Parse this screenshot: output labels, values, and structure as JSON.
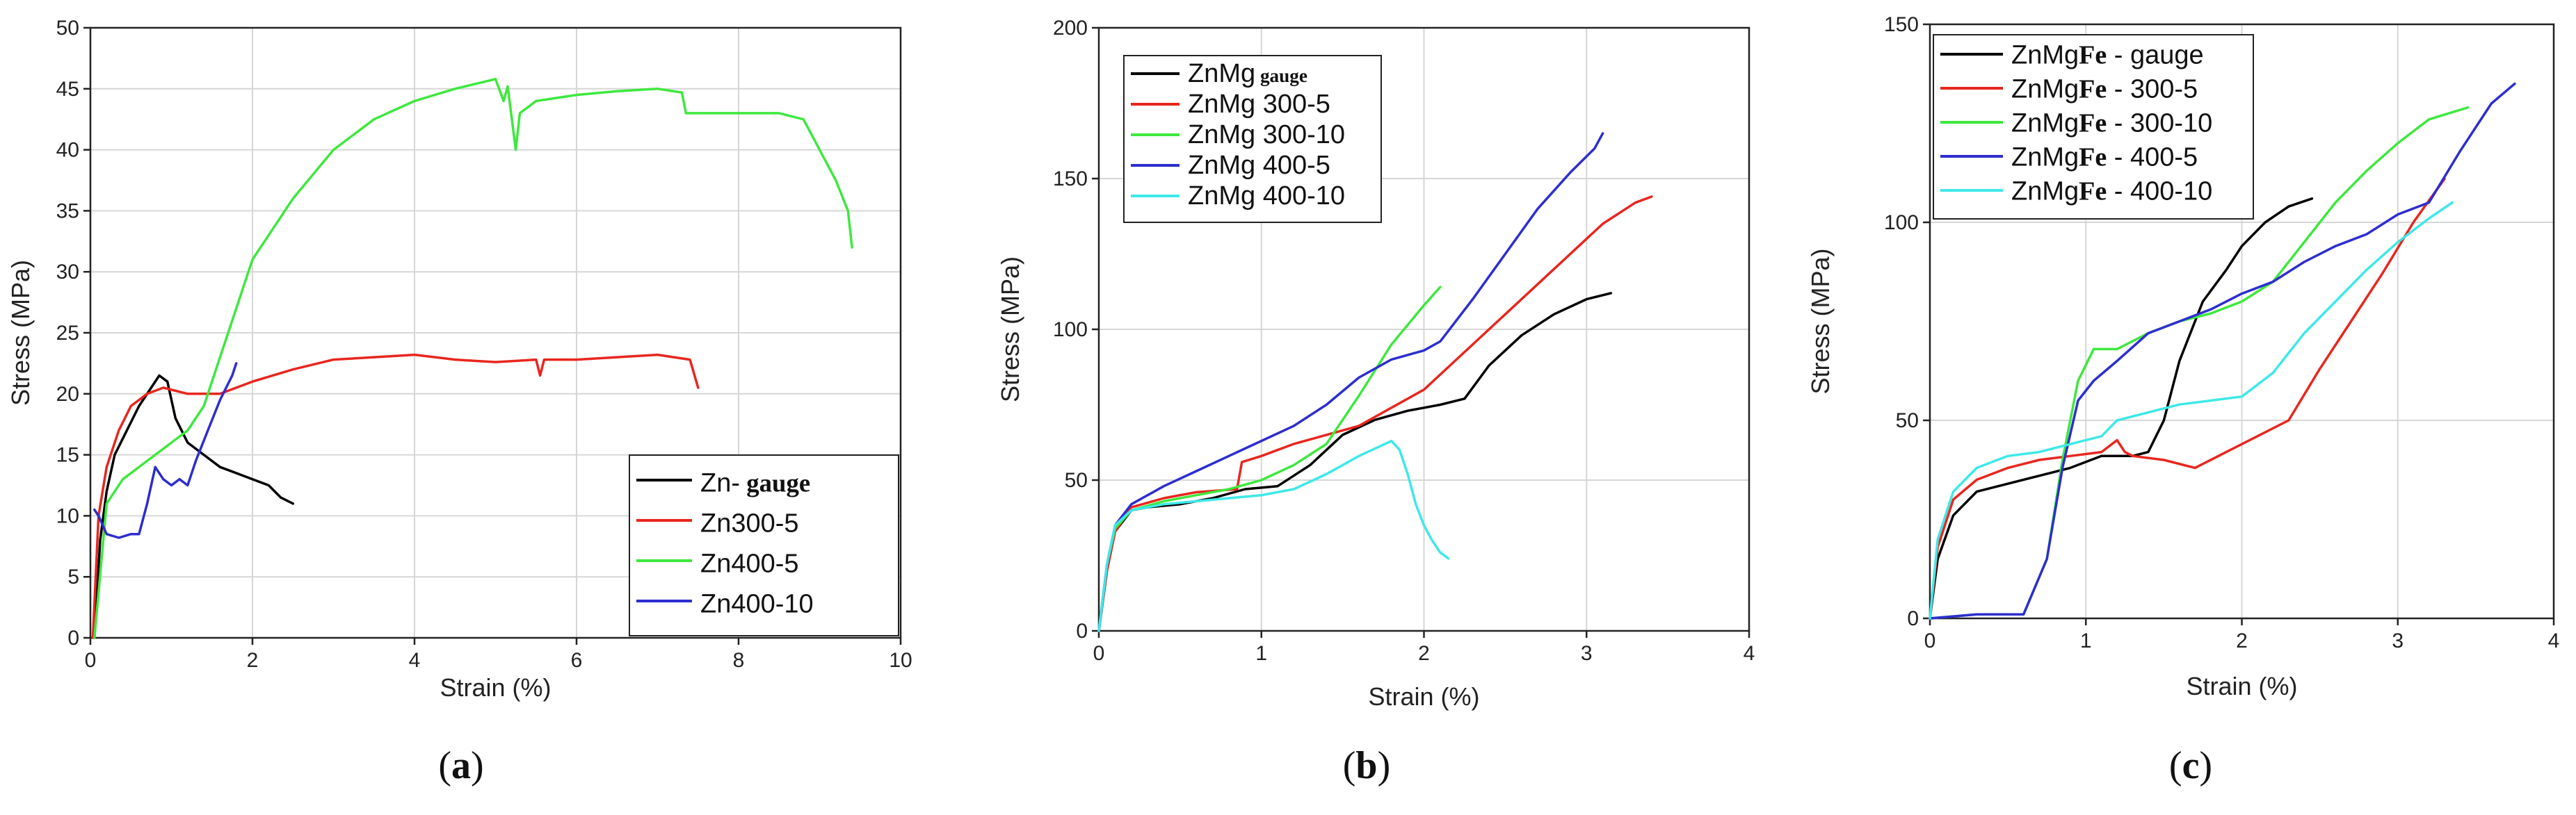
{
  "chart_data": [
    {
      "type": "line",
      "panel_label": "(a)",
      "panel_letter": "a",
      "xlabel": "Strain (%)",
      "ylabel": "Stress (MPa)",
      "xlim": [
        0,
        10
      ],
      "ylim": [
        0,
        50
      ],
      "xticks": [
        0,
        2,
        4,
        6,
        8,
        10
      ],
      "yticks": [
        0,
        5,
        10,
        15,
        20,
        25,
        30,
        35,
        40,
        45,
        50
      ],
      "grid": true,
      "legend_position": "bottom-right",
      "series": [
        {
          "name": "Zn- gauge",
          "prefix": "Zn-",
          "suffix": "gauge",
          "color": "#000000",
          "x": [
            0.05,
            0.12,
            0.2,
            0.3,
            0.45,
            0.6,
            0.75,
            0.85,
            0.95,
            1.05,
            1.2,
            1.4,
            1.6,
            1.8,
            2.0,
            2.2,
            2.35,
            2.5
          ],
          "y": [
            0,
            8,
            12,
            15,
            17,
            19,
            20.5,
            21.5,
            21,
            18,
            16,
            15,
            14,
            13.5,
            13,
            12.5,
            11.5,
            11
          ]
        },
        {
          "name": "Zn300-5",
          "prefix": "Zn300-5",
          "suffix": "",
          "color": "#e8261e",
          "x": [
            0.03,
            0.1,
            0.2,
            0.35,
            0.5,
            0.7,
            0.9,
            1.2,
            1.6,
            2.0,
            2.5,
            3.0,
            3.5,
            4.0,
            4.5,
            5.0,
            5.5,
            5.55,
            5.6,
            6.0,
            6.5,
            7.0,
            7.2,
            7.4,
            7.5
          ],
          "y": [
            0,
            10,
            14,
            17,
            19,
            20,
            20.5,
            20,
            20,
            21,
            22,
            22.8,
            23,
            23.2,
            22.8,
            22.6,
            22.8,
            21.5,
            22.8,
            22.8,
            23,
            23.2,
            23,
            22.8,
            20.5
          ]
        },
        {
          "name": "Zn400-5",
          "prefix": "Zn400-5",
          "suffix": "",
          "color": "#3ee83e",
          "x": [
            0.05,
            0.2,
            0.4,
            0.8,
            1.2,
            1.4,
            1.6,
            1.8,
            2.0,
            2.5,
            3.0,
            3.5,
            4.0,
            4.5,
            5.0,
            5.1,
            5.15,
            5.25,
            5.3,
            5.5,
            6.0,
            6.5,
            7.0,
            7.3,
            7.35,
            7.6,
            8.0,
            8.5,
            8.8,
            9.0,
            9.2,
            9.35,
            9.4
          ],
          "y": [
            0,
            11,
            13,
            15,
            17,
            19,
            23,
            27,
            31,
            36,
            40,
            42.5,
            44,
            45,
            45.8,
            44,
            45.2,
            40,
            43,
            44,
            44.5,
            44.8,
            45,
            44.7,
            43,
            43,
            43,
            43,
            42.5,
            40,
            37.5,
            35,
            32
          ]
        },
        {
          "name": "Zn400-10",
          "prefix": "Zn400-10",
          "suffix": "",
          "color": "#2d2dd0",
          "x": [
            0.05,
            0.1,
            0.2,
            0.35,
            0.5,
            0.6,
            0.7,
            0.8,
            0.9,
            1.0,
            1.1,
            1.2,
            1.3,
            1.45,
            1.6,
            1.75,
            1.8
          ],
          "y": [
            10.5,
            10,
            8.5,
            8.2,
            8.5,
            8.5,
            11,
            14,
            13,
            12.5,
            13,
            12.5,
            14.5,
            17,
            19.5,
            21.5,
            22.5
          ]
        }
      ]
    },
    {
      "type": "line",
      "panel_label": "(b)",
      "panel_letter": "b",
      "xlabel": "Strain (%)",
      "ylabel": "Stress (MPa)",
      "xlim": [
        0,
        4
      ],
      "ylim": [
        0,
        200
      ],
      "xticks": [
        0,
        1,
        2,
        3,
        4
      ],
      "yticks": [
        0,
        50,
        100,
        150,
        200
      ],
      "grid": true,
      "legend_position": "top-left",
      "series": [
        {
          "name": "ZnMg gauge",
          "prefix": "ZnMg",
          "suffix": "gauge",
          "color": "#000000",
          "x": [
            0,
            0.05,
            0.1,
            0.2,
            0.3,
            0.5,
            0.7,
            0.9,
            1.1,
            1.3,
            1.5,
            1.7,
            1.9,
            2.1,
            2.25,
            2.4,
            2.6,
            2.8,
            3.0,
            3.15
          ],
          "y": [
            0,
            20,
            33,
            40,
            41,
            42,
            44,
            47,
            48,
            55,
            65,
            70,
            73,
            75,
            77,
            88,
            98,
            105,
            110,
            112
          ]
        },
        {
          "name": "ZnMg 300-5",
          "prefix": "ZnMg",
          "suffix": "300-5",
          "color": "#e8261e",
          "x": [
            0,
            0.05,
            0.1,
            0.2,
            0.4,
            0.6,
            0.85,
            0.88,
            1.0,
            1.2,
            1.4,
            1.6,
            1.8,
            2.0,
            2.2,
            2.5,
            2.8,
            3.1,
            3.3,
            3.4
          ],
          "y": [
            0,
            20,
            33,
            41,
            44,
            46,
            47,
            56,
            58,
            62,
            65,
            68,
            74,
            80,
            90,
            105,
            120,
            135,
            142,
            144
          ]
        },
        {
          "name": "ZnMg 300-10",
          "prefix": "ZnMg",
          "suffix": "300-10",
          "color": "#3ee83e",
          "x": [
            0,
            0.05,
            0.1,
            0.2,
            0.4,
            0.6,
            0.8,
            1.0,
            1.2,
            1.4,
            1.6,
            1.8,
            2.0,
            2.1
          ],
          "y": [
            0,
            22,
            34,
            40,
            43,
            45,
            47,
            50,
            55,
            62,
            78,
            95,
            108,
            114
          ]
        },
        {
          "name": "ZnMg 400-5",
          "prefix": "ZnMg",
          "suffix": "400-5",
          "color": "#2d2dd0",
          "x": [
            0,
            0.05,
            0.1,
            0.2,
            0.4,
            0.6,
            0.8,
            1.0,
            1.2,
            1.4,
            1.6,
            1.8,
            2.0,
            2.1,
            2.3,
            2.5,
            2.7,
            2.9,
            3.05,
            3.1
          ],
          "y": [
            0,
            22,
            35,
            42,
            48,
            53,
            58,
            63,
            68,
            75,
            84,
            90,
            93,
            96,
            110,
            125,
            140,
            152,
            160,
            165
          ]
        },
        {
          "name": "ZnMg 400-10",
          "prefix": "ZnMg",
          "suffix": "400-10",
          "color": "#3ee8e8",
          "x": [
            0,
            0.05,
            0.1,
            0.2,
            0.4,
            0.6,
            0.8,
            1.0,
            1.2,
            1.4,
            1.6,
            1.8,
            1.85,
            1.9,
            1.95,
            2.0,
            2.05,
            2.1,
            2.15
          ],
          "y": [
            0,
            22,
            35,
            40,
            42,
            43,
            44,
            45,
            47,
            52,
            58,
            63,
            60,
            52,
            42,
            35,
            30,
            26,
            24
          ]
        }
      ]
    },
    {
      "type": "line",
      "panel_label": "(c)",
      "panel_letter": "c",
      "xlabel": "Strain (%)",
      "ylabel": "Stress (MPa)",
      "xlim": [
        0,
        4
      ],
      "ylim": [
        0,
        150
      ],
      "xticks": [
        0,
        1,
        2,
        3,
        4
      ],
      "yticks": [
        0,
        50,
        100,
        150
      ],
      "grid": true,
      "legend_position": "top-left",
      "series": [
        {
          "name": "ZnMgFe - gauge",
          "prefix": "ZnMg",
          "mid": "Fe",
          "suffix": "- gauge",
          "color": "#000000",
          "x": [
            0,
            0.05,
            0.15,
            0.3,
            0.5,
            0.7,
            0.9,
            1.1,
            1.3,
            1.4,
            1.5,
            1.6,
            1.75,
            1.9,
            2.0,
            2.15,
            2.3,
            2.45
          ],
          "y": [
            0,
            15,
            26,
            32,
            34,
            36,
            38,
            41,
            41,
            42,
            50,
            65,
            80,
            88,
            94,
            100,
            104,
            106
          ]
        },
        {
          "name": "ZnMgFe - 300-5",
          "prefix": "ZnMg",
          "mid": "Fe",
          "suffix": "- 300-5",
          "color": "#e8261e",
          "x": [
            0,
            0.05,
            0.15,
            0.3,
            0.5,
            0.7,
            0.9,
            1.1,
            1.2,
            1.25,
            1.3,
            1.5,
            1.7,
            1.9,
            2.1,
            2.3,
            2.5,
            2.7,
            2.9,
            3.1,
            3.3
          ],
          "y": [
            0,
            18,
            30,
            35,
            38,
            40,
            41,
            42,
            45,
            42,
            41,
            40,
            38,
            42,
            46,
            50,
            63,
            75,
            87,
            100,
            111
          ]
        },
        {
          "name": "ZnMgFe - 300-10",
          "prefix": "ZnMg",
          "mid": "Fe",
          "suffix": "- 300-10",
          "color": "#3ee83e",
          "x": [
            0,
            0.3,
            0.6,
            0.75,
            0.85,
            0.95,
            1.05,
            1.2,
            1.4,
            1.6,
            1.8,
            2.0,
            2.2,
            2.4,
            2.6,
            2.8,
            3.0,
            3.2,
            3.45
          ],
          "y": [
            0,
            1,
            1,
            15,
            40,
            60,
            68,
            68,
            72,
            75,
            77,
            80,
            85,
            95,
            105,
            113,
            120,
            126,
            129
          ]
        },
        {
          "name": "ZnMgFe - 400-5",
          "prefix": "ZnMg",
          "mid": "Fe",
          "suffix": "- 400-5",
          "color": "#2d2dd0",
          "x": [
            0,
            0.3,
            0.6,
            0.75,
            0.85,
            0.95,
            1.05,
            1.2,
            1.4,
            1.6,
            1.8,
            2.0,
            2.2,
            2.4,
            2.6,
            2.8,
            3.0,
            3.2,
            3.4,
            3.6,
            3.75
          ],
          "y": [
            0,
            1,
            1,
            15,
            38,
            55,
            60,
            65,
            72,
            75,
            78,
            82,
            85,
            90,
            94,
            97,
            102,
            105,
            118,
            130,
            135
          ]
        },
        {
          "name": "ZnMgFe - 400-10",
          "prefix": "ZnMg",
          "mid": "Fe",
          "suffix": "- 400-10",
          "color": "#3ee8e8",
          "x": [
            0,
            0.05,
            0.15,
            0.3,
            0.5,
            0.7,
            0.9,
            1.1,
            1.2,
            1.4,
            1.6,
            1.8,
            2.0,
            2.2,
            2.4,
            2.6,
            2.8,
            3.0,
            3.2,
            3.35
          ],
          "y": [
            0,
            20,
            32,
            38,
            41,
            42,
            44,
            46,
            50,
            52,
            54,
            55,
            56,
            62,
            72,
            80,
            88,
            95,
            101,
            105
          ]
        }
      ]
    }
  ]
}
